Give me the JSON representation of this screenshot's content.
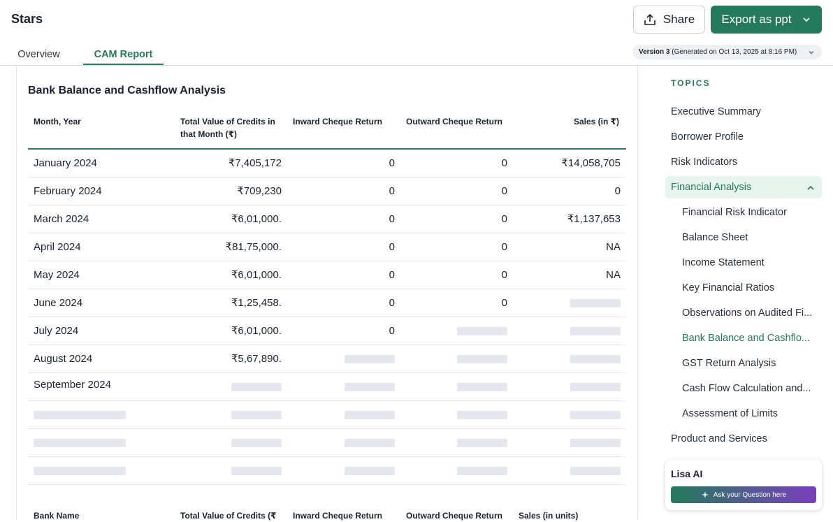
{
  "header": {
    "title": "Stars",
    "share": "Share",
    "export": "Export as ppt"
  },
  "tabs": [
    "Overview",
    "CAM Report"
  ],
  "version": {
    "label": "Version 3",
    "detail": "(Generated on Oct 13, 2025 at 8:16 PM)"
  },
  "section": {
    "title": "Bank Balance and Cashflow Analysis"
  },
  "table": {
    "columns": [
      "Month, Year",
      "Total Value of Credits in that Month (₹)",
      "Inward Cheque Return",
      "Outward Cheque Return",
      "Sales (in ₹)"
    ],
    "rows": [
      [
        "January 2024",
        "₹7,405,172",
        "0",
        "0",
        "₹14,058,705"
      ],
      [
        "February 2024",
        "₹709,230",
        "0",
        "0",
        "0"
      ],
      [
        "March 2024",
        "₹6,01,000.",
        "0",
        "0",
        "₹1,137,653"
      ],
      [
        "April 2024",
        "₹81,75,000.",
        "0",
        "0",
        "NA"
      ],
      [
        "May 2024",
        "₹6,01,000.",
        "0",
        "0",
        "NA"
      ],
      [
        "June 2024",
        "₹1,25,458.",
        "0",
        "0",
        null
      ],
      [
        "July 2024",
        "₹6,01,000.",
        "0",
        null,
        null
      ],
      [
        "August 2024",
        "₹5,67,890.",
        null,
        null,
        null
      ],
      [
        "September 2024",
        null,
        null,
        null,
        null
      ],
      [
        null,
        null,
        null,
        null,
        null
      ],
      [
        null,
        null,
        null,
        null,
        null
      ],
      [
        null,
        null,
        null,
        null,
        null
      ]
    ]
  },
  "table2": {
    "columns": [
      "Bank Name",
      "Total Value of Credits (₹",
      "Inward Cheque Return",
      "Outward Cheque Return",
      "Sales (in units)"
    ]
  },
  "topics": {
    "heading": "TOPICS",
    "items": [
      {
        "label": "Executive Summary"
      },
      {
        "label": "Borrower Profile"
      },
      {
        "label": "Risk Indicators"
      },
      {
        "label": "Financial Analysis",
        "children": [
          "Financial Risk Indicator",
          "Balance Sheet",
          "Income Statement",
          "Key Financial Ratios",
          "Observations on Audited Fi...",
          "Bank Balance and Cashflo...",
          "GST Return Analysis",
          "Cash Flow Calculation and...",
          "Assessment of Limits"
        ]
      },
      {
        "label": "Product and Services"
      }
    ]
  },
  "assistant": {
    "title": "Lisa AI",
    "prompt": "Ask your Question here"
  }
}
